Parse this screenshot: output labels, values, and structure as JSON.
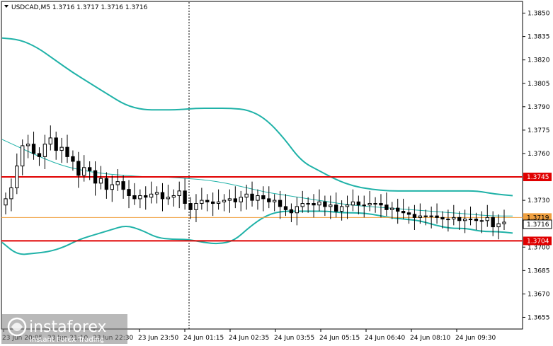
{
  "chart_data": {
    "type": "candlestick",
    "symbol_header": "USDCAD,M5  1.3716 1.3717 1.3716 1.3716",
    "y_ticks": [
      "1.3850",
      "1.3835",
      "1.3820",
      "1.3805",
      "1.3790",
      "1.3775",
      "1.3760",
      "1.3730",
      "1.3700",
      "1.3685",
      "1.3670",
      "1.3655"
    ],
    "x_ticks": [
      "23 Jun 20:05",
      "23 Jun 21:10",
      "23 Jun 22:30",
      "23 Jun 23:50",
      "24 Jun 01:15",
      "24 Jun 02:35",
      "24 Jun 03:55",
      "24 Jun 05:15",
      "24 Jun 06:40",
      "24 Jun 08:10",
      "24 Jun 09:30"
    ],
    "ylim": [
      1.36475,
      1.38575
    ],
    "levels": [
      {
        "label": "1.3745",
        "value": 1.3745,
        "color": "#e00000"
      },
      {
        "label": "1.3704",
        "value": 1.3704,
        "color": "#e00000"
      }
    ],
    "price_line": {
      "label": "1.3719",
      "value": 1.3719,
      "color": "#f0a040"
    },
    "current_price": {
      "label": "1.3716",
      "value": 1.3716
    },
    "series_colors": {
      "bands": "#20b2a8",
      "candles": "#000000"
    },
    "bollinger_upper": [
      1.3834,
      1.3833,
      1.3828,
      1.382,
      1.3812,
      1.3805,
      1.3798,
      1.3791,
      1.3788,
      1.3788,
      1.3788,
      1.3789,
      1.3789,
      1.3789,
      1.3788,
      1.3782,
      1.377,
      1.3755,
      1.3749,
      1.3743,
      1.3739,
      1.3737,
      1.3736,
      1.3736,
      1.3736,
      1.3736,
      1.3736,
      1.3736,
      1.3734,
      1.3733
    ],
    "bollinger_middle": [
      1.3769,
      1.3763,
      1.3757,
      1.3752,
      1.3749,
      1.3747,
      1.3746,
      1.3745,
      1.3745,
      1.3744,
      1.3743,
      1.3741,
      1.3738,
      1.3735,
      1.3733,
      1.3731,
      1.3729,
      1.3727,
      1.3726,
      1.3725,
      1.3724,
      1.3723,
      1.3722,
      1.3721,
      1.372,
      1.372
    ],
    "bollinger_lower": [
      1.3703,
      1.3695,
      1.3696,
      1.3697,
      1.37,
      1.3705,
      1.3708,
      1.3711,
      1.3714,
      1.3711,
      1.3706,
      1.3705,
      1.3705,
      1.3703,
      1.3702,
      1.3704,
      1.3713,
      1.372,
      1.3723,
      1.3723,
      1.3723,
      1.3723,
      1.3722,
      1.3722,
      1.3721,
      1.3719,
      1.3718,
      1.3717,
      1.3714,
      1.3712,
      1.3712,
      1.371,
      1.371,
      1.3709
    ],
    "candles_close": [
      1.3731,
      1.3738,
      1.3752,
      1.3765,
      1.3766,
      1.376,
      1.3758,
      1.3766,
      1.377,
      1.3762,
      1.3764,
      1.3758,
      1.3755,
      1.3746,
      1.3751,
      1.3749,
      1.3741,
      1.3744,
      1.3737,
      1.374,
      1.3742,
      1.3737,
      1.3733,
      1.3731,
      1.3733,
      1.3732,
      1.3734,
      1.3735,
      1.3731,
      1.3732,
      1.3733,
      1.3736,
      1.3728,
      1.3724,
      1.3728,
      1.373,
      1.3729,
      1.3728,
      1.3729,
      1.373,
      1.3731,
      1.3729,
      1.3732,
      1.3734,
      1.373,
      1.3733,
      1.3731,
      1.3729,
      1.373,
      1.3726,
      1.3724,
      1.3722,
      1.3726,
      1.3728,
      1.3728,
      1.3727,
      1.3729,
      1.3726,
      1.3727,
      1.3723,
      1.3726,
      1.3727,
      1.3729,
      1.3727,
      1.3727,
      1.3728,
      1.3728,
      1.3727,
      1.3724,
      1.3725,
      1.3723,
      1.3722,
      1.3721,
      1.3719,
      1.372,
      1.372,
      1.372,
      1.3719,
      1.3718,
      1.3718,
      1.3719,
      1.3717,
      1.3718,
      1.3718,
      1.3717,
      1.3717,
      1.3719,
      1.3713,
      1.3715,
      1.3716
    ],
    "watermark": {
      "brand": "instaforex",
      "tagline": "Instant Forex Trading"
    }
  }
}
